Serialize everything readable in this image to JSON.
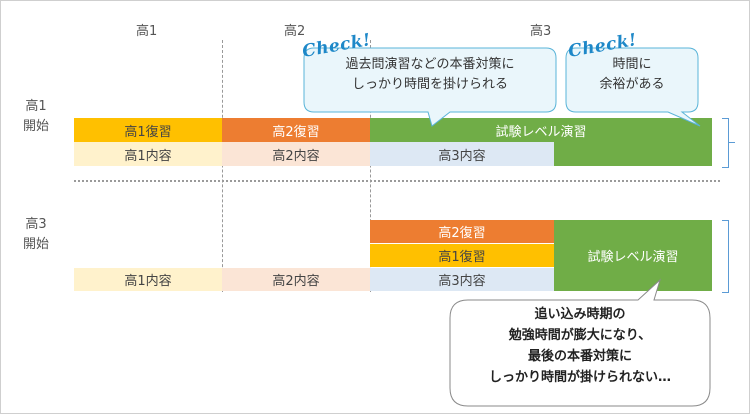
{
  "columns": {
    "c1": "高1",
    "c2": "高2",
    "c3": "高3"
  },
  "rows": {
    "r1_line1": "高1",
    "r1_line2": "開始",
    "r2_line1": "高3",
    "r2_line2": "開始"
  },
  "plan1": {
    "review1": "高1復習",
    "review2": "高2復習",
    "exam_practice": "試験レベル演習",
    "content1": "高1内容",
    "content2": "高2内容",
    "content3": "高3内容"
  },
  "plan2": {
    "review2": "高2復習",
    "review1": "高1復習",
    "exam_practice": "試験レベル演習",
    "content1": "高1内容",
    "content2": "高2内容",
    "content3": "高3内容"
  },
  "callouts": {
    "check_label": "Check!",
    "callout1_line1": "過去問演習などの本番対策に",
    "callout1_line2": "しっかり時間を掛けられる",
    "callout2_line1": "時間に",
    "callout2_line2": "余裕がある",
    "note_line1": "追い込み時期の",
    "note_line2": "勉強時間が膨大になり、",
    "note_line3": "最後の本番対策に",
    "note_line4": "しっかり時間が掛けられない…"
  },
  "colors": {
    "orange_yellow": "#ffc000",
    "orange": "#ed7d31",
    "green": "#70ad47",
    "blue_light": "#dde8f4",
    "yellow_light": "#fff2cc",
    "peach_light": "#fbe5d6",
    "accent_blue": "#5ab4d8"
  }
}
